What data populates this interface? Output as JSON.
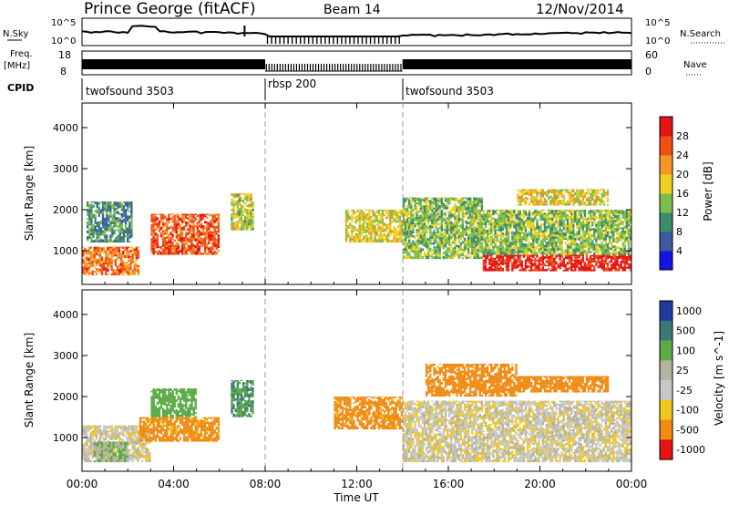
{
  "header": {
    "station": "Prince George (fitACF)",
    "beam": "Beam 14",
    "date": "12/Nov/2014"
  },
  "top_panels": {
    "sky_label": "N.Sky",
    "sky_tick_hi": "10^5",
    "sky_tick_lo": "10^0",
    "search_label": "N.Search",
    "search_tick_hi": "10^5",
    "search_tick_lo": "10^0",
    "freq_label": "Freq.",
    "freq_unit": "[MHz]",
    "freq_tick_hi": "18",
    "freq_tick_lo": "8",
    "nave_label": "Nave",
    "nave_tick_hi": "60",
    "nave_tick_lo": "0",
    "cpid_label": "CPID",
    "programs": [
      "twofsound 3503",
      "rbsp 200",
      "twofsound 3503"
    ]
  },
  "axes": {
    "ylabel": "Slant Range [km]",
    "xlabel": "Time UT",
    "x_ticks": [
      "00:00",
      "04:00",
      "08:00",
      "12:00",
      "16:00",
      "20:00",
      "00:00"
    ],
    "y_ticks": [
      "1000",
      "2000",
      "3000",
      "4000"
    ]
  },
  "colorbars": {
    "power": {
      "label": "Power [dB]",
      "ticks": [
        "4",
        "8",
        "12",
        "16",
        "20",
        "24",
        "28"
      ],
      "colors": [
        "#1414e6",
        "#3c5aa0",
        "#3c8c6e",
        "#7dbe4b",
        "#f0d01e",
        "#f59628",
        "#f05014",
        "#e61414"
      ]
    },
    "velocity": {
      "label": "Velocity [m s^-1]",
      "ticks": [
        "1000",
        "500",
        "100",
        "25",
        "-25",
        "-100",
        "-500",
        "-1000"
      ],
      "colors": [
        "#1e3ca0",
        "#3c7878",
        "#5aaa46",
        "#b4b4a0",
        "#c8c8c8",
        "#f0c81e",
        "#f08c14",
        "#e61414"
      ]
    }
  },
  "chart_data": [
    {
      "type": "heatmap",
      "title": "Power [dB]",
      "xlabel": "Time UT",
      "ylabel": "Slant Range [km]",
      "x_range_hours": [
        0,
        24
      ],
      "y_range_km": [
        180,
        4600
      ],
      "color_range": [
        0,
        32
      ],
      "grid": false,
      "mode_changes_ut": [
        "08:00",
        "14:00"
      ],
      "regions": [
        {
          "t_start": 0.0,
          "t_end": 2.5,
          "r_start": 400,
          "r_end": 1100,
          "power": 24
        },
        {
          "t_start": 0.2,
          "t_end": 2.2,
          "r_start": 1200,
          "r_end": 2200,
          "power": 10
        },
        {
          "t_start": 3.0,
          "t_end": 6.0,
          "r_start": 900,
          "r_end": 1900,
          "power": 26
        },
        {
          "t_start": 6.5,
          "t_end": 7.5,
          "r_start": 1500,
          "r_end": 2400,
          "power": 16
        },
        {
          "t_start": 11.5,
          "t_end": 14.0,
          "r_start": 1200,
          "r_end": 2000,
          "power": 18
        },
        {
          "t_start": 14.0,
          "t_end": 17.5,
          "r_start": 800,
          "r_end": 2300,
          "power": 14
        },
        {
          "t_start": 17.5,
          "t_end": 24.0,
          "r_start": 500,
          "r_end": 900,
          "power": 30
        },
        {
          "t_start": 17.0,
          "t_end": 24.0,
          "r_start": 900,
          "r_end": 2000,
          "power": 14
        },
        {
          "t_start": 19.0,
          "t_end": 23.0,
          "r_start": 2100,
          "r_end": 2500,
          "power": 18
        }
      ]
    },
    {
      "type": "heatmap",
      "title": "Velocity [m s^-1]",
      "xlabel": "Time UT",
      "ylabel": "Slant Range [km]",
      "x_range_hours": [
        0,
        24
      ],
      "y_range_km": [
        180,
        4600
      ],
      "color_range": [
        -1000,
        1000
      ],
      "grid": false,
      "mode_changes_ut": [
        "08:00",
        "14:00"
      ],
      "regions": [
        {
          "t_start": 0.0,
          "t_end": 3.0,
          "r_start": 400,
          "r_end": 1300,
          "velocity": 0
        },
        {
          "t_start": 0.5,
          "t_end": 2.0,
          "r_start": 400,
          "r_end": 900,
          "velocity": 100
        },
        {
          "t_start": 2.5,
          "t_end": 6.0,
          "r_start": 900,
          "r_end": 1500,
          "velocity": -150
        },
        {
          "t_start": 3.0,
          "t_end": 5.0,
          "r_start": 1500,
          "r_end": 2200,
          "velocity": 200
        },
        {
          "t_start": 6.5,
          "t_end": 7.5,
          "r_start": 1500,
          "r_end": 2400,
          "velocity": 500
        },
        {
          "t_start": 11.0,
          "t_end": 14.0,
          "r_start": 1200,
          "r_end": 2000,
          "velocity": -150
        },
        {
          "t_start": 14.0,
          "t_end": 24.0,
          "r_start": 400,
          "r_end": 1900,
          "velocity": 0
        },
        {
          "t_start": 15.0,
          "t_end": 19.0,
          "r_start": 2000,
          "r_end": 2800,
          "velocity": -200
        },
        {
          "t_start": 19.0,
          "t_end": 23.0,
          "r_start": 2100,
          "r_end": 2500,
          "velocity": -400
        }
      ]
    }
  ]
}
